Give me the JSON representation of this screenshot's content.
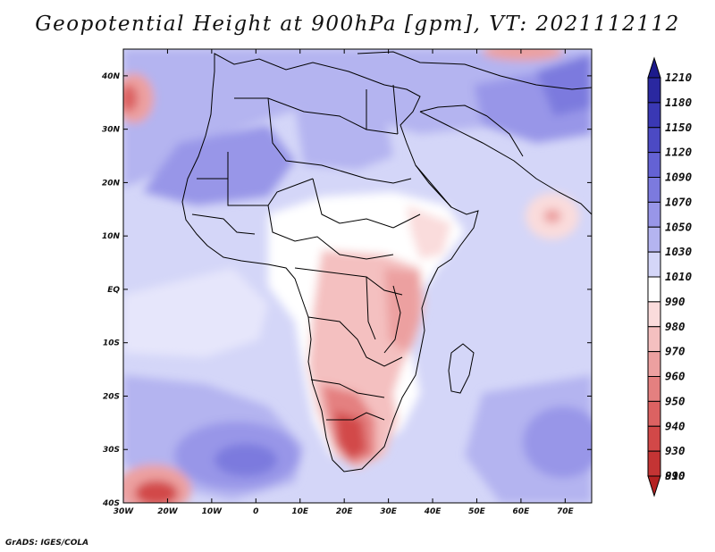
{
  "title": "Geopotential Height at 900hPa [gpm], VT: 2021112112",
  "credit": "GrADS: IGES/COLA",
  "map": {
    "projection": "latlon",
    "lon_range": [
      -30,
      76
    ],
    "lat_range": [
      -40,
      45
    ],
    "lon_ticks": [
      {
        "value": -30,
        "label": "30W"
      },
      {
        "value": -20,
        "label": "20W"
      },
      {
        "value": -10,
        "label": "10W"
      },
      {
        "value": 0,
        "label": "0"
      },
      {
        "value": 10,
        "label": "10E"
      },
      {
        "value": 20,
        "label": "20E"
      },
      {
        "value": 30,
        "label": "30E"
      },
      {
        "value": 40,
        "label": "40E"
      },
      {
        "value": 50,
        "label": "50E"
      },
      {
        "value": 60,
        "label": "60E"
      },
      {
        "value": 70,
        "label": "70E"
      }
    ],
    "lat_ticks": [
      {
        "value": 40,
        "label": "40N"
      },
      {
        "value": 30,
        "label": "30N"
      },
      {
        "value": 20,
        "label": "20N"
      },
      {
        "value": 10,
        "label": "10N"
      },
      {
        "value": 0,
        "label": "EQ"
      },
      {
        "value": -10,
        "label": "10S"
      },
      {
        "value": -20,
        "label": "20S"
      },
      {
        "value": -30,
        "label": "30S"
      },
      {
        "value": -40,
        "label": "40S"
      }
    ]
  },
  "colorbar": {
    "levels": [
      {
        "label": "1210",
        "color": "#1c1a8c"
      },
      {
        "label": "1180",
        "color": "#2a28a0"
      },
      {
        "label": "1150",
        "color": "#3a38b4"
      },
      {
        "label": "1120",
        "color": "#4c4ac4"
      },
      {
        "label": "1090",
        "color": "#6462d4"
      },
      {
        "label": "1070",
        "color": "#7c7ade"
      },
      {
        "label": "1050",
        "color": "#9896e8"
      },
      {
        "label": "1030",
        "color": "#b4b4f0"
      },
      {
        "label": "1010",
        "color": "#d4d6f8"
      },
      {
        "label": "990",
        "color": "#ffffff"
      },
      {
        "label": "980",
        "color": "#fadcdc"
      },
      {
        "label": "970",
        "color": "#f4c0c0"
      },
      {
        "label": "960",
        "color": "#eca0a0"
      },
      {
        "label": "950",
        "color": "#e48080"
      },
      {
        "label": "940",
        "color": "#dc6262"
      },
      {
        "label": "930",
        "color": "#d24848"
      },
      {
        "label": "910",
        "color": "#c43434"
      },
      {
        "label": "890",
        "color": "#b42222"
      }
    ]
  }
}
